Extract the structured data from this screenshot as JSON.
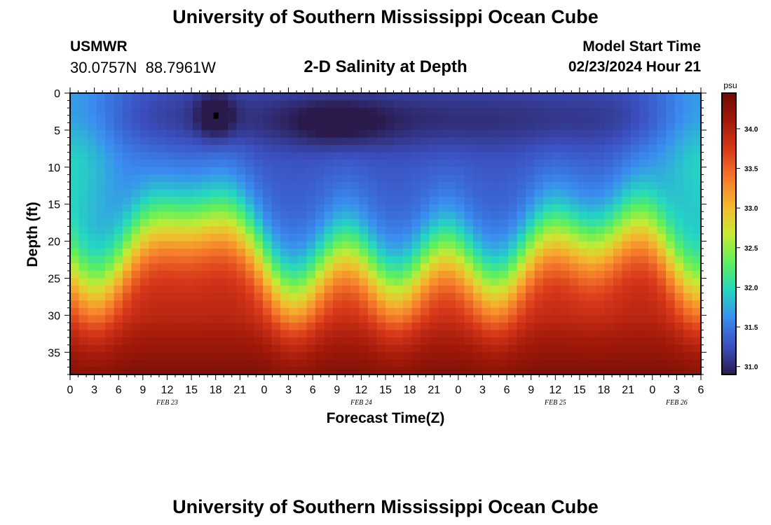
{
  "header": {
    "title": "University of Southern Mississippi Ocean Cube",
    "station_id": "USMWR",
    "coordinates": "30.0757N  88.7961W",
    "plot_title": "2-D Salinity at Depth",
    "model_start_label": "Model Start Time",
    "model_start_value": "02/23/2024 Hour 21"
  },
  "footer": {
    "title": "University of Southern Mississippi Ocean Cube"
  },
  "chart_data": {
    "type": "heatmap",
    "title": "2-D Salinity at Depth",
    "xlabel": "Forecast Time(Z)",
    "ylabel": "Depth (ft)",
    "x_tick_labels": [
      "0",
      "3",
      "6",
      "9",
      "12",
      "15",
      "18",
      "21",
      "0",
      "3",
      "6",
      "9",
      "12",
      "15",
      "18",
      "21",
      "0",
      "3",
      "6",
      "9",
      "12",
      "15",
      "18",
      "21",
      "0",
      "3",
      "6"
    ],
    "x_date_labels": [
      {
        "label": "FEB 23",
        "hour": 12
      },
      {
        "label": "FEB 24",
        "hour": 36
      },
      {
        "label": "FEB 25",
        "hour": 60
      },
      {
        "label": "FEB 26",
        "hour": 75
      }
    ],
    "xlim_hours": [
      0,
      78
    ],
    "y_ticks": [
      0,
      5,
      10,
      15,
      20,
      25,
      30,
      35
    ],
    "ylim": [
      0,
      38
    ],
    "colorbar": {
      "unit": "psu",
      "min": 30.9,
      "max": 34.45,
      "ticks": [
        31.0,
        31.5,
        32.0,
        32.5,
        33.0,
        33.5,
        34.0
      ],
      "tick_labels": [
        "31.0",
        "31.5",
        "32.0",
        "32.5",
        "33.0",
        "33.5",
        "34.0"
      ]
    },
    "grid_cols": 72,
    "grid_rows": 38,
    "fresh_minima": [
      {
        "hour": 18,
        "depth": 3,
        "psu": 30.9
      },
      {
        "hour": 33,
        "depth": 4,
        "psu": 31.05
      }
    ]
  },
  "colors": {
    "background": "#ffffff",
    "salinity_scale": [
      "#2a1a4c",
      "#3b4fbf",
      "#3a8cf0",
      "#24d7c0",
      "#5ff05a",
      "#c8e933",
      "#f4b82e",
      "#f5782a",
      "#d8381a",
      "#a41a0a",
      "#6e0c06"
    ]
  }
}
